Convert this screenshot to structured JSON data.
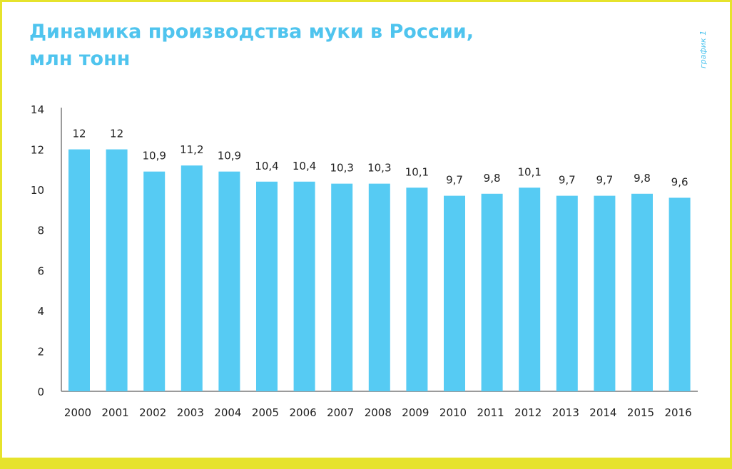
{
  "chart_data": {
    "type": "bar",
    "title": "Динамика производства муки в России, млн тонн",
    "title_lines": [
      "Динамика производства муки в России,",
      "млн тонн"
    ],
    "side_label": "график 1",
    "categories": [
      "2000",
      "2001",
      "2002",
      "2003",
      "2004",
      "2005",
      "2006",
      "2007",
      "2008",
      "2009",
      "2010",
      "2011",
      "2012",
      "2013",
      "2014",
      "2015",
      "2016"
    ],
    "values": [
      12,
      12,
      10.9,
      11.2,
      10.9,
      10.4,
      10.4,
      10.3,
      10.3,
      10.1,
      9.7,
      9.8,
      10.1,
      9.7,
      9.7,
      9.8,
      9.6
    ],
    "value_labels": [
      "12",
      "12",
      "10,9",
      "11,2",
      "10,9",
      "10,4",
      "10,4",
      "10,3",
      "10,3",
      "10,1",
      "9,7",
      "9,8",
      "10,1",
      "9,7",
      "9,7",
      "9,8",
      "9,6"
    ],
    "yticks": [
      "0",
      "2",
      "4",
      "6",
      "8",
      "10",
      "12",
      "14"
    ],
    "ylim": [
      0,
      14
    ],
    "xlabel": "",
    "ylabel": "",
    "grid": false,
    "legend": "none",
    "bar_color": "#56cbf3",
    "title_color": "#4fc4ee",
    "frame_color": "#e6e32c"
  }
}
